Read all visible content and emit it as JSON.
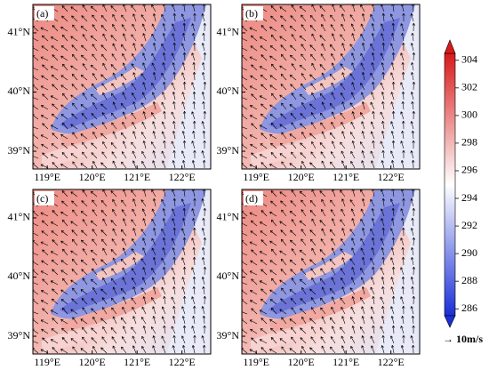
{
  "panels": [
    {
      "label": "(a)"
    },
    {
      "label": "(b)"
    },
    {
      "label": "(c)"
    },
    {
      "label": "(d)"
    }
  ],
  "lonlim": [
    118.68,
    122.64
  ],
  "latlim": [
    38.7,
    41.48
  ],
  "lon_ticks": [
    {
      "value": 119,
      "label": "119°E"
    },
    {
      "value": 120,
      "label": "120°E"
    },
    {
      "value": 121,
      "label": "121°E"
    },
    {
      "value": 122,
      "label": "122°E"
    }
  ],
  "lat_ticks": [
    {
      "value": 39,
      "label": "39°N"
    },
    {
      "value": 40,
      "label": "40°N"
    },
    {
      "value": 41,
      "label": "41°N"
    }
  ],
  "colorbar": {
    "lim": [
      285.5,
      304.5
    ],
    "ticks": [
      286,
      288,
      290,
      292,
      294,
      296,
      298,
      300,
      302,
      304
    ]
  },
  "vector_legend": "→ 10m/s"
}
